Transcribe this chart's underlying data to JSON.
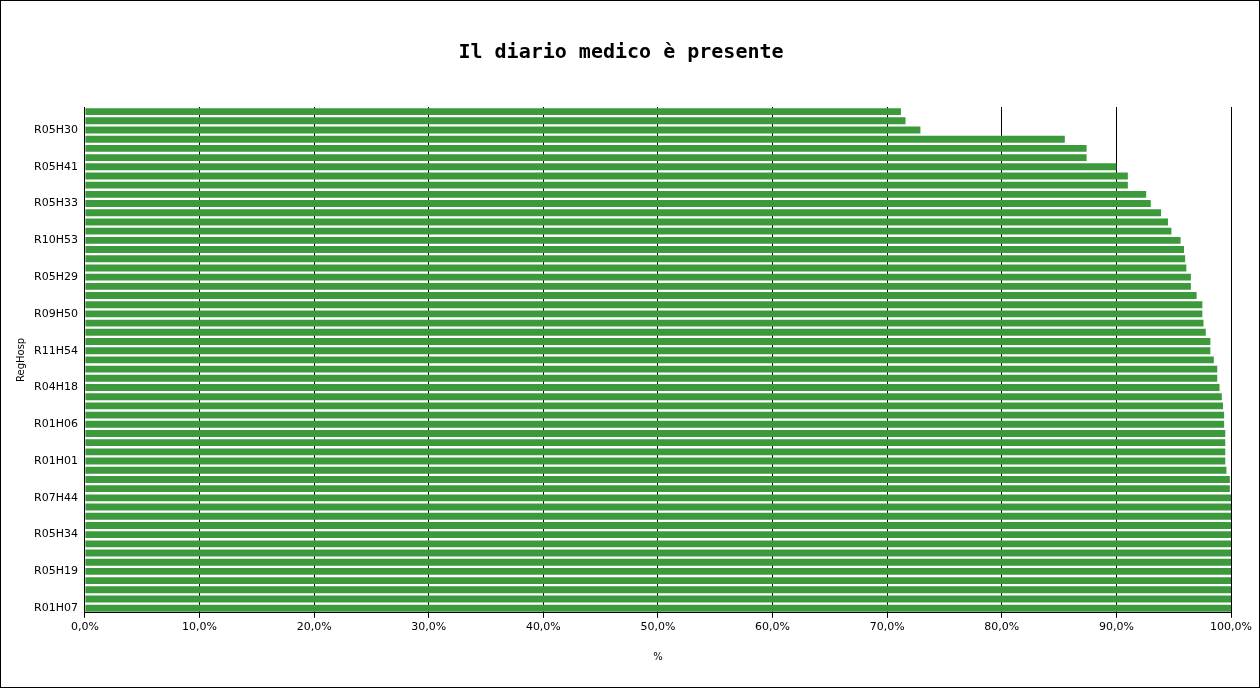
{
  "chart_data": {
    "type": "bar",
    "orientation": "horizontal",
    "title": "Il diario medico è presente",
    "xlabel": "%",
    "ylabel": "RegHosp",
    "categories": [
      null,
      null,
      "R05H30",
      null,
      null,
      null,
      "R05H41",
      null,
      null,
      null,
      "R05H33",
      null,
      null,
      null,
      "R10H53",
      null,
      null,
      null,
      "R05H29",
      null,
      null,
      null,
      "R09H50",
      null,
      null,
      null,
      "R11H54",
      null,
      null,
      null,
      "R04H18",
      null,
      null,
      null,
      "R01H06",
      null,
      null,
      null,
      "R01H01",
      null,
      null,
      null,
      "R07H44",
      null,
      null,
      null,
      "R05H34",
      null,
      null,
      null,
      "R05H19",
      null,
      null,
      null,
      "R01H07"
    ],
    "values": [
      71.2,
      71.6,
      72.9,
      85.5,
      87.4,
      87.4,
      90.0,
      91.0,
      91.0,
      92.6,
      93.0,
      93.9,
      94.5,
      94.8,
      95.6,
      95.9,
      96.0,
      96.1,
      96.5,
      96.5,
      97.0,
      97.5,
      97.5,
      97.6,
      97.8,
      98.2,
      98.2,
      98.5,
      98.8,
      98.8,
      99.0,
      99.2,
      99.3,
      99.4,
      99.4,
      99.5,
      99.5,
      99.5,
      99.5,
      99.6,
      99.9,
      99.9,
      100,
      100,
      100,
      100,
      100,
      100,
      100,
      100,
      100,
      100,
      100,
      100,
      100
    ],
    "color": "#3c9a3c",
    "xlim": [
      0,
      100
    ],
    "xticks": [
      {
        "value": 0,
        "label": "0,0%"
      },
      {
        "value": 10,
        "label": "10,0%"
      },
      {
        "value": 20,
        "label": "20,0%"
      },
      {
        "value": 30,
        "label": "30,0%"
      },
      {
        "value": 40,
        "label": "40,0%"
      },
      {
        "value": 50,
        "label": "50,0%"
      },
      {
        "value": 60,
        "label": "60,0%"
      },
      {
        "value": 70,
        "label": "70,0%"
      },
      {
        "value": 80,
        "label": "80,0%"
      },
      {
        "value": 90,
        "label": "90,0%"
      },
      {
        "value": 100,
        "label": "100,0%"
      }
    ],
    "grid": "x",
    "legend": false
  }
}
